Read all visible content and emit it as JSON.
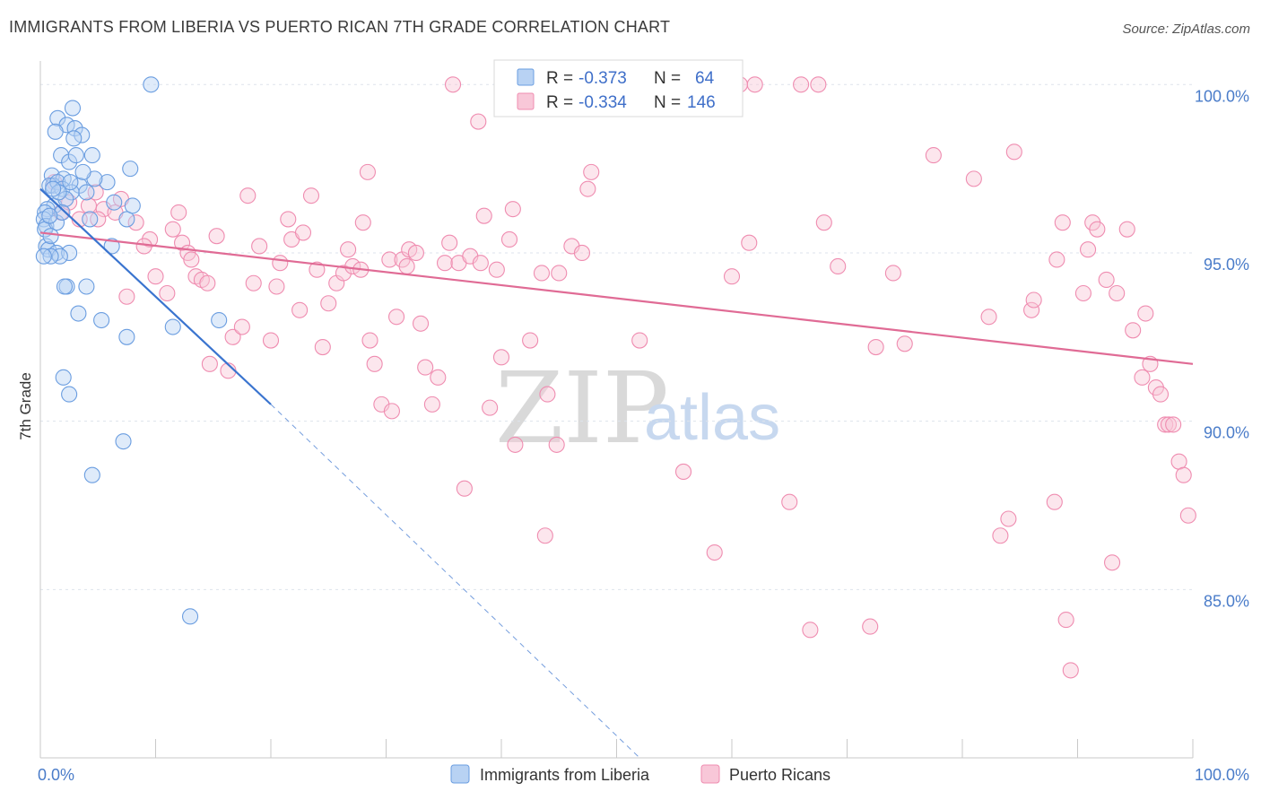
{
  "title": "IMMIGRANTS FROM LIBERIA VS PUERTO RICAN 7TH GRADE CORRELATION CHART",
  "source": "Source: ZipAtlas.com",
  "watermark": {
    "zip": "ZIP",
    "atlas": "atlas"
  },
  "colors": {
    "blue": "#6a9de0",
    "pink": "#ef8cb0",
    "blue_line": "#3a74cf",
    "pink_line": "#e06b95",
    "grid": "#dde3ec"
  },
  "legend": {
    "rows": [
      {
        "r_label": "R =",
        "r_value": "-0.373",
        "n_label": "N =",
        "n_value": "64"
      },
      {
        "r_label": "R =",
        "r_value": "-0.334",
        "n_label": "N =",
        "n_value": "146"
      }
    ]
  },
  "bottom_legend": [
    "Immigrants from Liberia",
    "Puerto Ricans"
  ],
  "chart_data": {
    "type": "scatter",
    "title": "IMMIGRANTS FROM LIBERIA VS PUERTO RICAN 7TH GRADE CORRELATION CHART",
    "xlabel": "",
    "ylabel": "7th Grade",
    "xlim": [
      0,
      100
    ],
    "ylim": [
      80.0,
      100.7
    ],
    "x_ticks": [
      {
        "v": 0,
        "label": "0.0%"
      },
      {
        "v": 100,
        "label": "100.0%"
      }
    ],
    "y_ticks": [
      {
        "v": 100,
        "label": "100.0%"
      },
      {
        "v": 95,
        "label": "95.0%"
      },
      {
        "v": 90,
        "label": "90.0%"
      },
      {
        "v": 85,
        "label": "85.0%"
      }
    ],
    "legend_position": "top-center",
    "grid": true,
    "series": [
      {
        "name": "Immigrants from Liberia",
        "color": "#6a9de0",
        "trend": {
          "x0": 0.0,
          "y0": 96.9,
          "x1": 20.0,
          "y1": 90.5,
          "dash_x1": 52.0,
          "dash_y1": 80.0
        },
        "points": [
          [
            1.5,
            99.0
          ],
          [
            2.3,
            98.8
          ],
          [
            3.0,
            98.7
          ],
          [
            3.6,
            98.5
          ],
          [
            2.8,
            99.3
          ],
          [
            1.8,
            97.9
          ],
          [
            2.5,
            97.7
          ],
          [
            4.5,
            97.9
          ],
          [
            1.0,
            97.3
          ],
          [
            2.0,
            97.2
          ],
          [
            3.4,
            97.0
          ],
          [
            1.1,
            97.0
          ],
          [
            0.8,
            97.0
          ],
          [
            1.5,
            97.1
          ],
          [
            1.9,
            96.9
          ],
          [
            2.7,
            96.8
          ],
          [
            4.0,
            96.8
          ],
          [
            1.2,
            96.4
          ],
          [
            0.6,
            96.3
          ],
          [
            0.4,
            96.2
          ],
          [
            0.3,
            96.0
          ],
          [
            0.5,
            95.8
          ],
          [
            0.4,
            95.7
          ],
          [
            1.4,
            95.9
          ],
          [
            4.3,
            96.0
          ],
          [
            7.5,
            96.0
          ],
          [
            8.0,
            96.4
          ],
          [
            6.4,
            96.5
          ],
          [
            6.2,
            95.2
          ],
          [
            0.5,
            95.2
          ],
          [
            0.7,
            95.1
          ],
          [
            1.4,
            95.0
          ],
          [
            2.5,
            95.0
          ],
          [
            1.7,
            94.9
          ],
          [
            0.9,
            94.9
          ],
          [
            0.3,
            94.9
          ],
          [
            2.3,
            94.0
          ],
          [
            2.1,
            94.0
          ],
          [
            4.0,
            94.0
          ],
          [
            3.3,
            93.2
          ],
          [
            5.3,
            93.0
          ],
          [
            7.5,
            92.5
          ],
          [
            11.5,
            92.8
          ],
          [
            15.5,
            93.0
          ],
          [
            2.0,
            91.3
          ],
          [
            2.5,
            90.8
          ],
          [
            7.2,
            89.4
          ],
          [
            4.5,
            88.4
          ],
          [
            13.0,
            84.2
          ],
          [
            9.6,
            100.0
          ],
          [
            7.8,
            97.5
          ],
          [
            5.8,
            97.1
          ],
          [
            4.7,
            97.2
          ],
          [
            1.3,
            98.6
          ],
          [
            2.9,
            98.4
          ],
          [
            3.1,
            97.9
          ],
          [
            2.2,
            96.6
          ],
          [
            1.9,
            96.2
          ],
          [
            0.8,
            96.1
          ],
          [
            1.6,
            96.8
          ],
          [
            3.7,
            97.4
          ],
          [
            2.6,
            97.1
          ],
          [
            0.9,
            95.5
          ],
          [
            1.1,
            96.9
          ]
        ]
      },
      {
        "name": "Puerto Ricans",
        "color": "#ef8cb0",
        "trend": {
          "x0": 0.0,
          "y0": 95.6,
          "x1": 100.0,
          "y1": 91.7
        },
        "points": [
          [
            1.2,
            97.1
          ],
          [
            1.8,
            96.2
          ],
          [
            2.5,
            96.5
          ],
          [
            3.4,
            96.0
          ],
          [
            4.2,
            96.4
          ],
          [
            4.8,
            96.8
          ],
          [
            5.5,
            96.3
          ],
          [
            6.5,
            96.2
          ],
          [
            7.0,
            96.6
          ],
          [
            8.3,
            95.9
          ],
          [
            9.5,
            95.4
          ],
          [
            10.0,
            94.3
          ],
          [
            11.0,
            93.8
          ],
          [
            11.5,
            95.7
          ],
          [
            12.0,
            96.2
          ],
          [
            12.3,
            95.3
          ],
          [
            12.8,
            95.0
          ],
          [
            13.1,
            94.8
          ],
          [
            13.5,
            94.3
          ],
          [
            14.0,
            94.2
          ],
          [
            14.7,
            91.7
          ],
          [
            15.3,
            95.5
          ],
          [
            16.3,
            91.5
          ],
          [
            16.7,
            92.5
          ],
          [
            17.5,
            92.8
          ],
          [
            18.5,
            94.1
          ],
          [
            19.0,
            95.2
          ],
          [
            20.0,
            92.4
          ],
          [
            20.5,
            94.0
          ],
          [
            21.5,
            96.0
          ],
          [
            21.8,
            95.4
          ],
          [
            22.5,
            93.3
          ],
          [
            22.8,
            95.6
          ],
          [
            23.5,
            96.7
          ],
          [
            24.0,
            94.5
          ],
          [
            24.5,
            92.2
          ],
          [
            25.0,
            93.5
          ],
          [
            25.7,
            94.1
          ],
          [
            26.3,
            94.4
          ],
          [
            26.7,
            95.1
          ],
          [
            27.1,
            94.6
          ],
          [
            28.0,
            95.9
          ],
          [
            28.4,
            97.4
          ],
          [
            28.6,
            92.4
          ],
          [
            29.0,
            91.7
          ],
          [
            29.6,
            90.5
          ],
          [
            30.3,
            94.8
          ],
          [
            30.5,
            90.3
          ],
          [
            30.9,
            93.1
          ],
          [
            31.4,
            94.8
          ],
          [
            32.0,
            95.1
          ],
          [
            32.6,
            95.0
          ],
          [
            33.0,
            92.9
          ],
          [
            33.4,
            91.6
          ],
          [
            34.0,
            90.5
          ],
          [
            34.5,
            91.3
          ],
          [
            35.1,
            94.7
          ],
          [
            35.5,
            95.3
          ],
          [
            35.8,
            100.0
          ],
          [
            36.3,
            94.7
          ],
          [
            36.8,
            88.0
          ],
          [
            37.3,
            94.9
          ],
          [
            38.0,
            98.9
          ],
          [
            38.5,
            96.1
          ],
          [
            39.0,
            90.4
          ],
          [
            39.6,
            94.5
          ],
          [
            40.0,
            91.9
          ],
          [
            40.7,
            95.4
          ],
          [
            41.0,
            96.3
          ],
          [
            41.2,
            89.3
          ],
          [
            42.5,
            92.4
          ],
          [
            43.5,
            94.4
          ],
          [
            43.8,
            86.6
          ],
          [
            44.0,
            90.8
          ],
          [
            44.8,
            89.3
          ],
          [
            46.1,
            95.2
          ],
          [
            47.0,
            95.0
          ],
          [
            47.5,
            96.9
          ],
          [
            47.8,
            97.4
          ],
          [
            49.0,
            100.0
          ],
          [
            49.6,
            99.9
          ],
          [
            50.6,
            100.0
          ],
          [
            52.0,
            92.4
          ],
          [
            53.0,
            100.0
          ],
          [
            55.8,
            88.5
          ],
          [
            57.5,
            100.0
          ],
          [
            58.5,
            86.1
          ],
          [
            59.0,
            100.0
          ],
          [
            60.7,
            100.0
          ],
          [
            61.5,
            95.3
          ],
          [
            62.0,
            100.0
          ],
          [
            65.0,
            87.6
          ],
          [
            66.0,
            100.0
          ],
          [
            66.8,
            83.8
          ],
          [
            67.5,
            100.0
          ],
          [
            68.0,
            95.9
          ],
          [
            69.2,
            94.6
          ],
          [
            72.0,
            83.9
          ],
          [
            72.5,
            92.2
          ],
          [
            74.0,
            94.4
          ],
          [
            75.0,
            92.3
          ],
          [
            77.5,
            97.9
          ],
          [
            81.0,
            97.2
          ],
          [
            82.3,
            93.1
          ],
          [
            83.3,
            86.6
          ],
          [
            84.0,
            87.1
          ],
          [
            84.5,
            98.0
          ],
          [
            86.0,
            93.3
          ],
          [
            86.2,
            93.6
          ],
          [
            88.0,
            87.6
          ],
          [
            88.2,
            94.8
          ],
          [
            88.7,
            95.9
          ],
          [
            89.0,
            84.1
          ],
          [
            89.4,
            82.6
          ],
          [
            90.5,
            93.8
          ],
          [
            90.9,
            95.1
          ],
          [
            91.3,
            95.9
          ],
          [
            91.7,
            95.7
          ],
          [
            92.5,
            94.2
          ],
          [
            93.0,
            85.8
          ],
          [
            93.4,
            93.8
          ],
          [
            94.3,
            95.7
          ],
          [
            94.8,
            92.7
          ],
          [
            95.6,
            91.3
          ],
          [
            95.9,
            93.2
          ],
          [
            96.3,
            91.7
          ],
          [
            96.8,
            91.0
          ],
          [
            97.2,
            90.8
          ],
          [
            97.6,
            89.9
          ],
          [
            97.9,
            89.9
          ],
          [
            98.3,
            89.9
          ],
          [
            98.8,
            88.8
          ],
          [
            99.2,
            88.4
          ],
          [
            99.6,
            87.2
          ],
          [
            5.0,
            96.0
          ],
          [
            9.0,
            95.2
          ],
          [
            14.5,
            94.1
          ],
          [
            18.0,
            96.7
          ],
          [
            27.8,
            94.5
          ],
          [
            31.8,
            94.6
          ],
          [
            38.2,
            94.7
          ],
          [
            45.0,
            94.4
          ],
          [
            52.5,
            100.0
          ],
          [
            60.0,
            94.3
          ],
          [
            7.5,
            93.7
          ],
          [
            20.8,
            94.7
          ]
        ]
      }
    ]
  }
}
